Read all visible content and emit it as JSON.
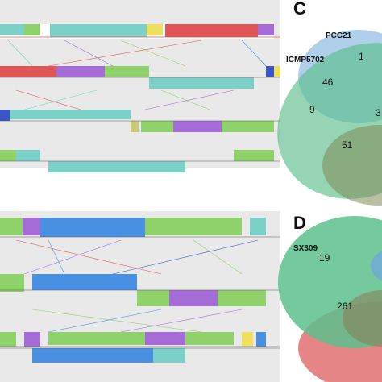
{
  "panel_c": {
    "letter": "C",
    "genome_a": "PCC21",
    "genome_b": "ICMP5702",
    "counts": [
      "1",
      "46",
      "9",
      "3",
      "51"
    ],
    "colors": {
      "blue": "#6fa8d8",
      "green": "#5cbf8c",
      "olive": "#7d8a55"
    }
  },
  "panel_d": {
    "letter": "D",
    "genome_a": "SX309",
    "counts": [
      "19",
      "261"
    ],
    "colors": {
      "green": "#5cbf8c",
      "red": "#e06666",
      "blue": "#6fa8d8",
      "brown": "#8a7a55"
    }
  },
  "alignment_colors": [
    "#7bd0c8",
    "#e05555",
    "#a56bd6",
    "#8fd16a",
    "#4a90e2",
    "#f0e060",
    "#3a55c8",
    "#c9c97a"
  ]
}
